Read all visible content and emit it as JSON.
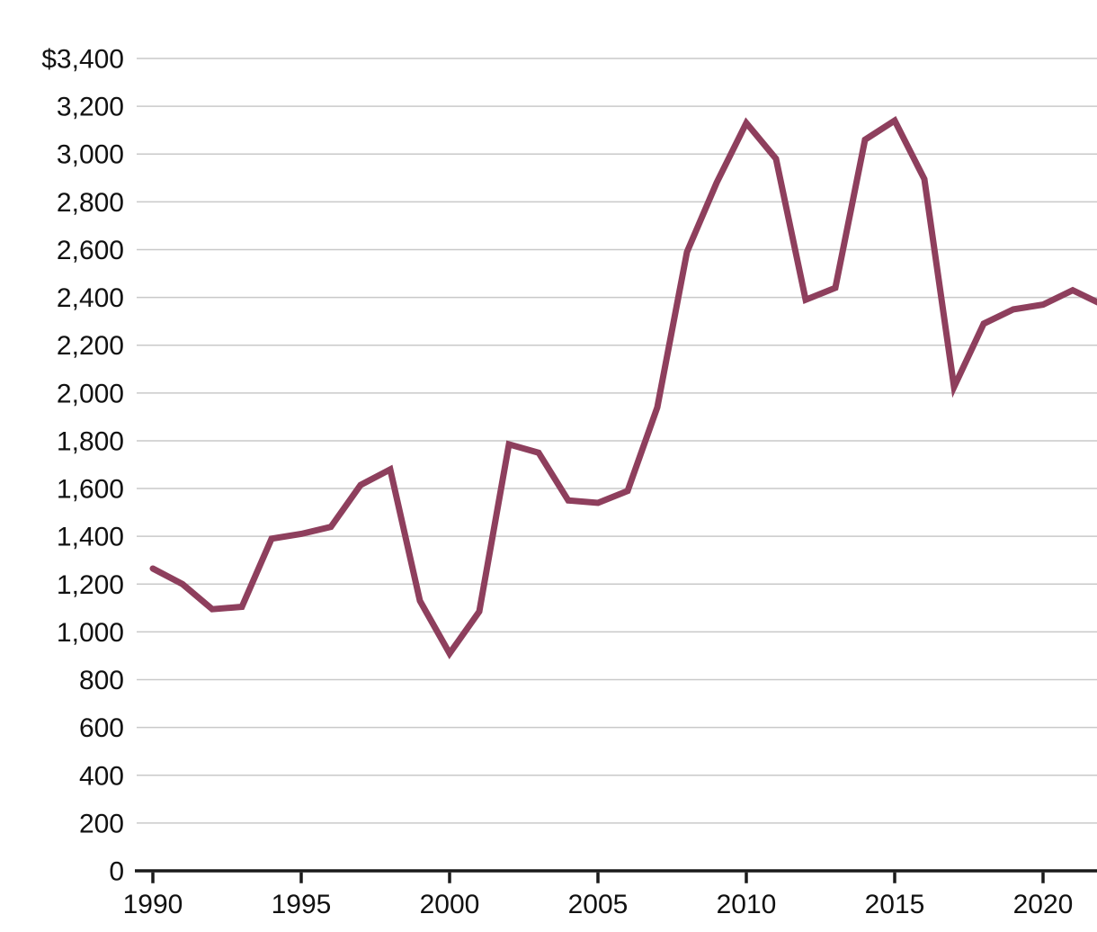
{
  "chart_data": {
    "type": "line",
    "title": "",
    "xlabel": "",
    "ylabel": "",
    "x": [
      1990,
      1991,
      1992,
      1993,
      1994,
      1995,
      1996,
      1997,
      1998,
      1999,
      2000,
      2001,
      2002,
      2003,
      2004,
      2005,
      2006,
      2007,
      2008,
      2009,
      2010,
      2011,
      2012,
      2013,
      2014,
      2015,
      2016,
      2017,
      2018,
      2019,
      2020,
      2021,
      2022
    ],
    "series": [
      {
        "name": "dollar-value",
        "values": [
          1265,
          1200,
          1095,
          1105,
          1390,
          1410,
          1440,
          1615,
          1680,
          1130,
          910,
          1085,
          1785,
          1750,
          1550,
          1540,
          1590,
          1940,
          2590,
          2880,
          3130,
          2980,
          2390,
          2440,
          3060,
          3140,
          2895,
          2025,
          2290,
          2350,
          2370,
          2430,
          2370
        ]
      }
    ],
    "xlim": [
      1990,
      2022
    ],
    "ylim": [
      0,
      3400
    ],
    "y_tick_step": 200,
    "y_tick_labels_top_to_bottom": [
      "$3,400",
      "3,200",
      "3,000",
      "2,800",
      "2,600",
      "2,400",
      "2,200",
      "2,000",
      "1,800",
      "1,600",
      "1,400",
      "1,200",
      "1,000",
      "800",
      "600",
      "400",
      "200",
      "0"
    ],
    "x_tick_labels": [
      "1990",
      "1995",
      "2000",
      "2005",
      "2010",
      "2015",
      "2020"
    ],
    "x_tick_years": [
      1990,
      1995,
      2000,
      2005,
      2010,
      2015,
      2020
    ],
    "grid": "horizontal",
    "legend": "none",
    "colors": {
      "line": "#8E3F5D",
      "gridline": "#C9C9C9",
      "axis": "#1A1A1A",
      "text": "#111111",
      "background": "#FFFFFF"
    }
  }
}
